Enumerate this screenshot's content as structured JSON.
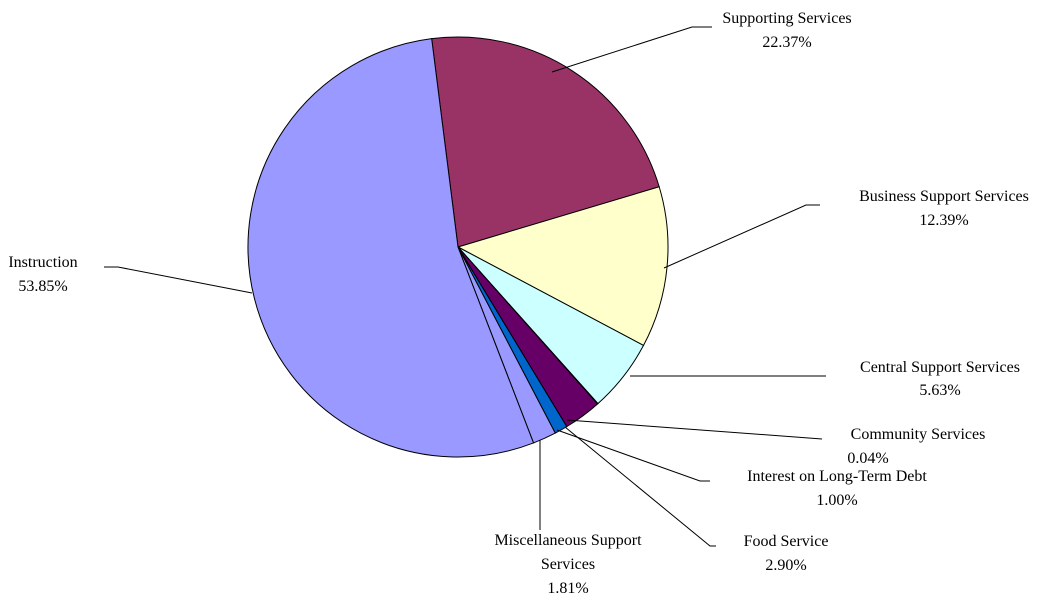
{
  "chart_data": {
    "type": "pie",
    "title": "",
    "slices": [
      {
        "label": "Supporting Services",
        "value_label": "22.37%",
        "value": 22.37,
        "color": "#993366"
      },
      {
        "label": "Business Support Services",
        "value_label": "12.39%",
        "value": 12.39,
        "color": "#ffffcc"
      },
      {
        "label": "Central Support Services",
        "value_label": "5.63%",
        "value": 5.63,
        "color": "#ccffff"
      },
      {
        "label": "Community Services",
        "value_label": "0.04%",
        "value": 0.04,
        "color": "#ff8080"
      },
      {
        "label": "Food Service",
        "value_label": "2.90%",
        "value": 2.9,
        "color": "#660066"
      },
      {
        "label": "Interest on Long-Term Debt",
        "value_label": "1.00%",
        "value": 1.0,
        "color": "#0066cc"
      },
      {
        "label": "Miscellaneous Support Services",
        "value_label": "1.81%",
        "value": 1.81,
        "color": "#9999ff"
      },
      {
        "label": "Instruction",
        "value_label": "53.85%",
        "value": 53.85,
        "color": "#9999ff"
      }
    ]
  }
}
